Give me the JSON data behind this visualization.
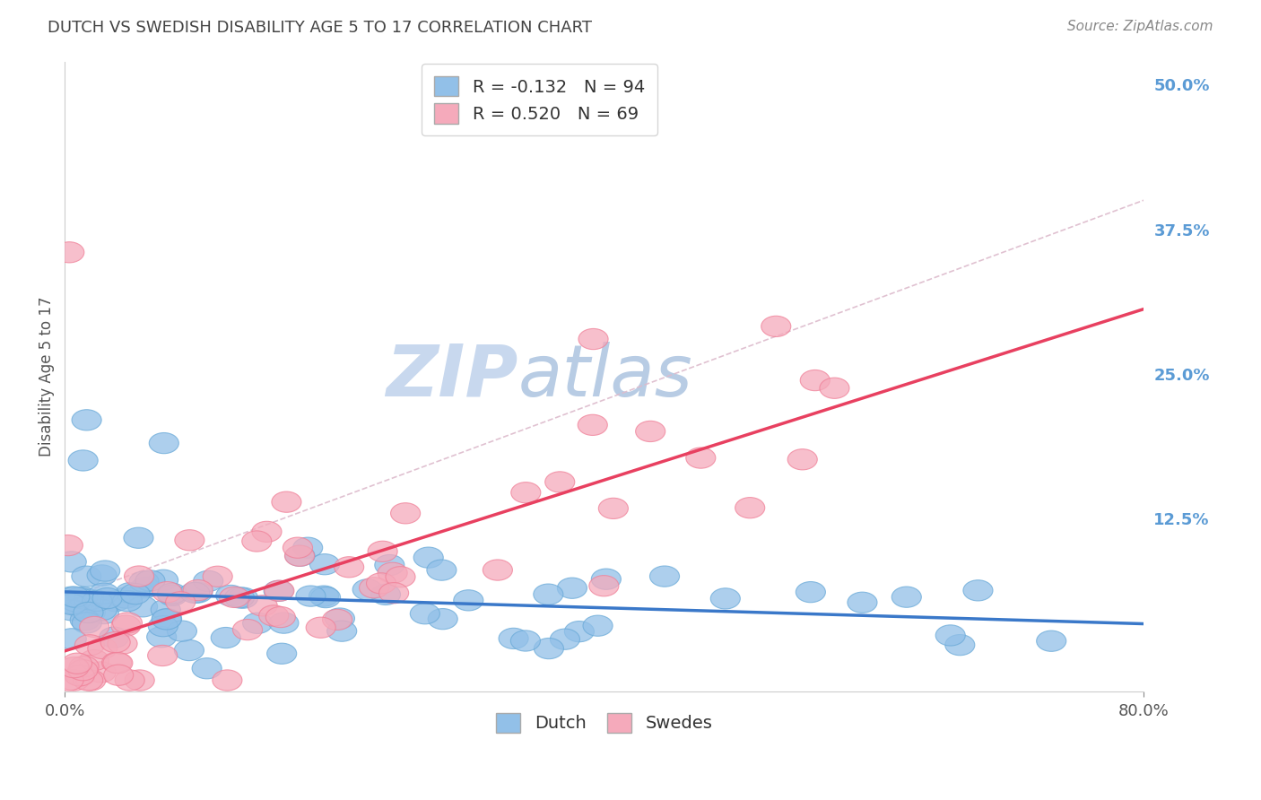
{
  "title": "DUTCH VS SWEDISH DISABILITY AGE 5 TO 17 CORRELATION CHART",
  "source_text": "Source: ZipAtlas.com",
  "ylabel": "Disability Age 5 to 17",
  "xlim": [
    0.0,
    0.8
  ],
  "ylim": [
    -0.025,
    0.52
  ],
  "yticks_right": [
    0.125,
    0.25,
    0.375,
    0.5
  ],
  "ytick_right_labels": [
    "12.5%",
    "25.0%",
    "37.5%",
    "50.0%"
  ],
  "dutch_R": -0.132,
  "dutch_N": 94,
  "swedes_R": 0.52,
  "swedes_N": 69,
  "dutch_color": "#92c0e8",
  "swedes_color": "#f5aabb",
  "dutch_edge_color": "#6aaad8",
  "swedes_edge_color": "#f08098",
  "dutch_line_color": "#3a78c9",
  "swedes_line_color": "#e84060",
  "grid_color": "#cccccc",
  "background_color": "#ffffff",
  "title_color": "#444444",
  "watermark_zip_color": "#c8d8ee",
  "watermark_atlas_color": "#b8cce4",
  "right_label_color": "#5b9bd5",
  "legend_label1": "Dutch",
  "legend_label2": "Swedes",
  "dashed_line_color": "#ddbbcc"
}
